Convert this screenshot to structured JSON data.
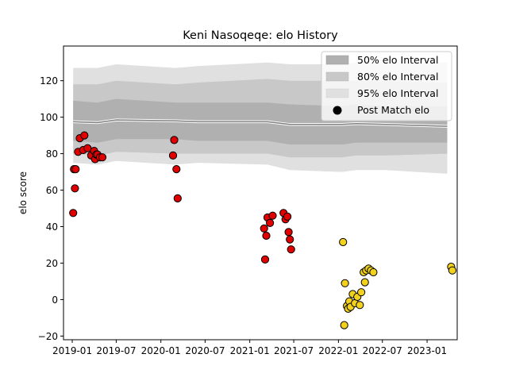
{
  "chart_data": {
    "type": "scatter",
    "title": "Keni Nasoqeqe: elo History",
    "xlabel": "",
    "ylabel": "elo score",
    "ylim": [
      -22,
      139
    ],
    "xlim": [
      "2018-11-26",
      "2023-05-05"
    ],
    "x_ticks": [
      "2019-01",
      "2019-07",
      "2020-01",
      "2020-07",
      "2021-01",
      "2021-07",
      "2022-01",
      "2022-07",
      "2023-01"
    ],
    "y_ticks": [
      -20,
      0,
      20,
      40,
      60,
      80,
      100,
      120
    ],
    "legend": {
      "position": "top-right",
      "entries": [
        "50% elo Interval",
        "80% elo Interval",
        "95% elo Interval",
        "Post Match elo"
      ]
    },
    "colors": {
      "band_50": "#b0b0b0",
      "band_80": "#c8c8c8",
      "band_95": "#e0e0e0",
      "mean_line": "#808080",
      "points_early": "#e00000",
      "points_late": "#f2d21c"
    },
    "interval_bands": {
      "x": [
        "2019-01-05",
        "2019-04-15",
        "2019-07-01",
        "2020-03-01",
        "2020-06-01",
        "2021-03-15",
        "2021-06-15",
        "2022-01-15",
        "2022-03-15",
        "2022-07-15",
        "2023-03-25"
      ],
      "mean": [
        97.5,
        97,
        98.5,
        98,
        97.5,
        97.5,
        96,
        96,
        96.5,
        96,
        95
      ],
      "p25": [
        87,
        86,
        88,
        88,
        87,
        87,
        85,
        85,
        86,
        86,
        86
      ],
      "p75": [
        109,
        108,
        110,
        108,
        108,
        108,
        107,
        106,
        107,
        106,
        106
      ],
      "p10": [
        80,
        79,
        81,
        80,
        80,
        80,
        78,
        78,
        79,
        79,
        80
      ],
      "p90": [
        118,
        118,
        120,
        118,
        119,
        121,
        120,
        120,
        120,
        120,
        119
      ],
      "p2_5": [
        75,
        74,
        76,
        74,
        75,
        74,
        71,
        70,
        71,
        71,
        69
      ],
      "p97_5": [
        127,
        127,
        129,
        127,
        128,
        130,
        129,
        129,
        130,
        130,
        130
      ]
    },
    "series": [
      {
        "group": "early",
        "x": [
          "2019-01-05",
          "2019-01-08",
          "2019-01-12",
          "2019-01-15",
          "2019-01-25",
          "2019-02-01",
          "2019-02-15",
          "2019-02-20",
          "2019-03-05",
          "2019-03-20",
          "2019-04-01",
          "2019-04-05",
          "2019-04-10",
          "2019-04-15",
          "2019-04-25",
          "2019-05-05",
          "2020-02-20",
          "2020-02-25",
          "2020-03-05",
          "2020-03-10",
          "2021-03-01",
          "2021-03-05",
          "2021-03-10",
          "2021-03-15",
          "2021-03-25",
          "2021-04-05",
          "2021-05-20",
          "2021-05-28",
          "2021-06-05",
          "2021-06-10",
          "2021-06-15",
          "2021-06-20"
        ],
        "values": [
          47.5,
          71.5,
          61,
          71.5,
          81,
          88.5,
          82,
          90,
          83,
          79,
          81.5,
          77,
          79.5,
          79.5,
          78,
          78,
          79,
          87.5,
          71.5,
          55.5,
          39,
          22,
          35,
          45,
          42,
          46,
          47.5,
          44,
          45.5,
          37,
          33,
          27.5
        ]
      },
      {
        "group": "late",
        "x": [
          "2022-01-20",
          "2022-01-25",
          "2022-01-28",
          "2022-02-05",
          "2022-02-10",
          "2022-02-15",
          "2022-02-20",
          "2022-03-01",
          "2022-03-10",
          "2022-03-20",
          "2022-03-30",
          "2022-04-05",
          "2022-04-15",
          "2022-04-20",
          "2022-04-25",
          "2022-05-05",
          "2022-05-15",
          "2022-05-25",
          "2023-04-10",
          "2023-04-15"
        ],
        "values": [
          31.5,
          -14,
          9,
          -3.5,
          -5,
          -1,
          -4,
          3,
          -2,
          1.5,
          -3,
          4,
          15,
          9.5,
          16,
          17,
          16,
          15,
          18,
          16
        ]
      }
    ]
  }
}
